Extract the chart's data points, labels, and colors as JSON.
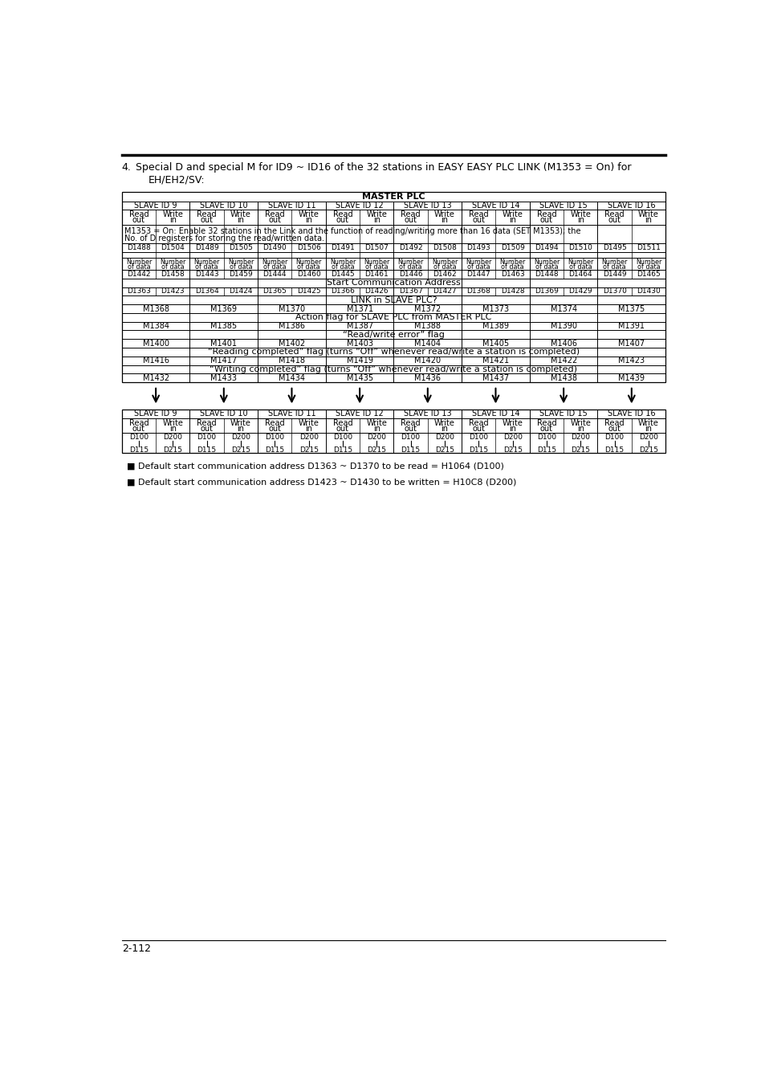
{
  "footer_text": "2-112",
  "note1": "■ Default start communication address D1363 ~ D1370 to be read = H1064 (D100)",
  "note2": "■ Default start communication address D1423 ~ D1430 to be written = H10C8 (D200)",
  "background": "#ffffff",
  "text_color": "#000000",
  "slave_ids": [
    "SLAVE ID 9",
    "SLAVE ID 10",
    "SLAVE ID 11",
    "SLAVE ID 12",
    "SLAVE ID 13",
    "SLAVE ID 14",
    "SLAVE ID 15",
    "SLAVE ID 16"
  ],
  "d_row4": [
    "D1488",
    "D1504",
    "D1489",
    "D1505",
    "D1490",
    "D1506",
    "D1491",
    "D1507",
    "D1492",
    "D1508",
    "D1493",
    "D1509",
    "D1494",
    "D1510",
    "D1495",
    "D1511"
  ],
  "d_row7": [
    "D1442",
    "D1458",
    "D1443",
    "D1459",
    "D1444",
    "D1460",
    "D1445",
    "D1461",
    "D1446",
    "D1462",
    "D1447",
    "D1463",
    "D1448",
    "D1464",
    "D1449",
    "D1465"
  ],
  "d_row9": [
    "D1363",
    "D1423",
    "D1364",
    "D1424",
    "D1365",
    "D1425",
    "D1366",
    "D1426",
    "D1367",
    "D1427",
    "D1368",
    "D1428",
    "D1369",
    "D1429",
    "D1370",
    "D1430"
  ],
  "m_row11": [
    "M1368",
    "M1369",
    "M1370",
    "M1371",
    "M1372",
    "M1373",
    "M1374",
    "M1375"
  ],
  "m_row13": [
    "M1384",
    "M1385",
    "M1386",
    "M1387",
    "M1388",
    "M1389",
    "M1390",
    "M1391"
  ],
  "m_row15": [
    "M1400",
    "M1401",
    "M1402",
    "M1403",
    "M1404",
    "M1405",
    "M1406",
    "M1407"
  ],
  "m_row17": [
    "M1416",
    "M1417",
    "M1418",
    "M1419",
    "M1420",
    "M1421",
    "M1422",
    "M1423"
  ],
  "m_row19": [
    "M1432",
    "M1433",
    "M1434",
    "M1435",
    "M1436",
    "M1437",
    "M1438",
    "M1439"
  ]
}
